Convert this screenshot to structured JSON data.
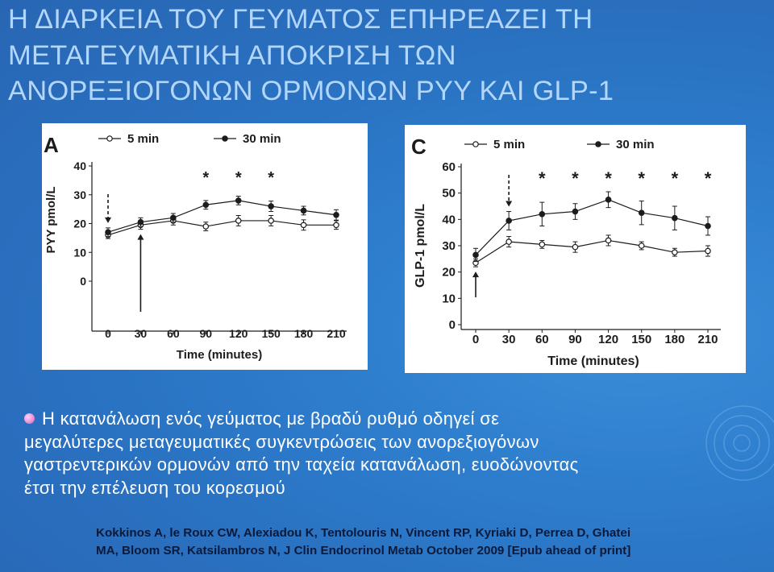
{
  "slide": {
    "title_lines": [
      "Η ΔΙΑΡΚΕΙΑ ΤΟΥ ΓΕΥΜΑΤΟΣ ΕΠΗΡΕΑΖΕΙ ΤΗ",
      "ΜΕΤΑΓΕΥΜΑΤΙΚΗ ΑΠΟΚΡΙΣΗ ΤΩΝ",
      "ΑΝΟΡΕΞΙΟΓΟΝΩΝ ΟΡΜΟΝΩΝ PYY ΚΑΙ GLP-1"
    ],
    "bullet_lines": [
      "Η κατανάλωση ενός γεύματος με βραδύ ρυθμό οδηγεί σε",
      "μεγαλύτερες μεταγευματικές συγκεντρώσεις των ανορεξιογόνων",
      "γαστρεντερικών ορμονών από την ταχεία κατανάλωση, ευοδώνοντας",
      "έτσι την επέλευση του κορεσμού"
    ],
    "citation_lines": [
      "Kokkinos A, le Roux CW, Alexiadou K, Tentolouris N, Vincent RP, Kyriaki D, Perrea D, Ghatei",
      "MA, Bloom SR, Katsilambros N, J Clin Endocrinol Metab October 2009 [Epub ahead of print]"
    ],
    "colors": {
      "title": "#b3d6fb",
      "bullet_text": "#ffffff",
      "bullet_dot": "#f39ee0",
      "citation": "#0b1a3a",
      "chart_ink": "#1c1c1c"
    }
  },
  "chart_data": [
    {
      "type": "line",
      "panel_label": "A",
      "xlabel": "Time (minutes)",
      "ylabel": "PYY pmol/L",
      "x": [
        0,
        30,
        60,
        90,
        120,
        150,
        180,
        210
      ],
      "ylim": [
        0,
        40
      ],
      "yticks": [
        0,
        10,
        20,
        30,
        40
      ],
      "series": [
        {
          "name": "5 min",
          "marker": "open",
          "values": [
            16,
            19.5,
            21,
            19,
            21,
            21,
            19.5,
            19.5
          ],
          "errors": [
            1.2,
            1.5,
            1.5,
            1.5,
            1.8,
            1.8,
            1.8,
            1.5
          ]
        },
        {
          "name": "30 min",
          "marker": "filled",
          "values": [
            17,
            20.5,
            22,
            26.5,
            28,
            26,
            24.5,
            23
          ],
          "errors": [
            1.5,
            1.5,
            1.5,
            1.5,
            1.5,
            1.8,
            1.5,
            1.8
          ]
        }
      ],
      "significant_x": [
        90,
        120,
        150
      ],
      "significance_mark": "*",
      "arrows": {
        "dashed_x": 0,
        "solid_x": 30
      }
    },
    {
      "type": "line",
      "panel_label": "C",
      "xlabel": "Time (minutes)",
      "ylabel": "GLP-1 pmol/L",
      "x": [
        0,
        30,
        60,
        90,
        120,
        150,
        180,
        210
      ],
      "ylim": [
        0,
        60
      ],
      "yticks": [
        0,
        10,
        20,
        30,
        40,
        50,
        60
      ],
      "series": [
        {
          "name": "5 min",
          "marker": "open",
          "values": [
            23.5,
            31.5,
            30.5,
            29.5,
            32,
            30,
            27.5,
            28
          ],
          "errors": [
            1.5,
            2,
            1.5,
            2,
            2,
            1.5,
            1.5,
            2
          ]
        },
        {
          "name": "30 min",
          "marker": "filled",
          "values": [
            26.5,
            39.5,
            42,
            43,
            47.5,
            42.5,
            40.5,
            37.5
          ],
          "errors": [
            2.5,
            3.5,
            4.5,
            3,
            3,
            4.5,
            4.5,
            3.5
          ]
        }
      ],
      "significant_x": [
        60,
        90,
        120,
        150,
        180,
        210
      ],
      "significance_mark": "*",
      "arrows": {
        "dashed_x": 30,
        "solid_x": 0
      }
    }
  ]
}
